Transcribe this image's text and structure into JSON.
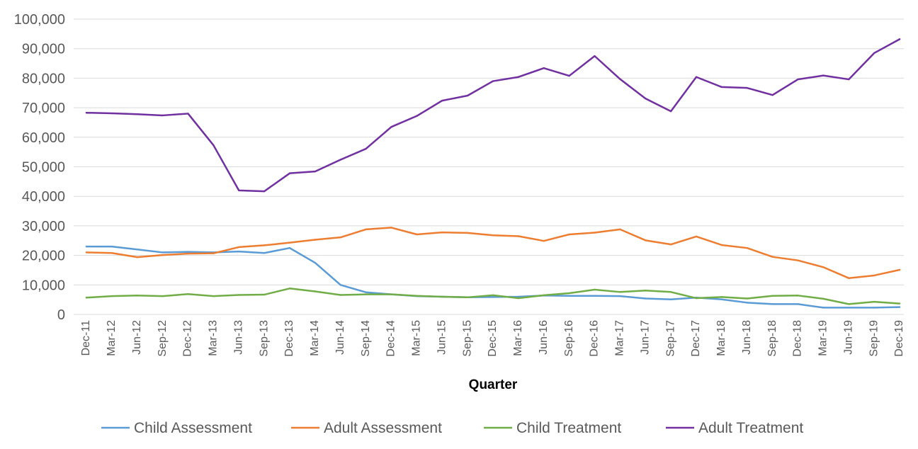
{
  "chart_data": {
    "type": "line",
    "title": "",
    "xlabel": "Quarter",
    "ylabel": "",
    "ylim": [
      0,
      100000
    ],
    "yticks": [
      0,
      10000,
      20000,
      30000,
      40000,
      50000,
      60000,
      70000,
      80000,
      90000,
      100000
    ],
    "ytick_labels": [
      "0",
      "10,000",
      "20,000",
      "30,000",
      "40,000",
      "50,000",
      "60,000",
      "70,000",
      "80,000",
      "90,000",
      "100,000"
    ],
    "grid": true,
    "legend_position": "bottom",
    "categories": [
      "Dec-11",
      "Mar-12",
      "Jun-12",
      "Sep-12",
      "Dec-12",
      "Mar-13",
      "Jun-13",
      "Sep-13",
      "Dec-13",
      "Mar-14",
      "Jun-14",
      "Sep-14",
      "Dec-14",
      "Mar-15",
      "Jun-15",
      "Sep-15",
      "Dec-15",
      "Mar-16",
      "Jun-16",
      "Sep-16",
      "Dec-16",
      "Mar-17",
      "Jun-17",
      "Sep-17",
      "Dec-17",
      "Mar-18",
      "Jun-18",
      "Sep-18",
      "Dec-18",
      "Mar-19",
      "Jun-19",
      "Sep-19",
      "Dec-19"
    ],
    "series": [
      {
        "name": "Child Assessment",
        "color": "#5B9BD5",
        "values": [
          23000,
          23000,
          22000,
          21000,
          21200,
          21000,
          21300,
          20800,
          22500,
          17500,
          10000,
          7500,
          6800,
          6200,
          6000,
          5800,
          5900,
          6000,
          6400,
          6300,
          6300,
          6200,
          5400,
          5100,
          5700,
          5100,
          4000,
          3500,
          3500,
          2300,
          2300,
          2300,
          2500
        ]
      },
      {
        "name": "Adult Assessment",
        "color": "#ED7D31",
        "values": [
          21000,
          20800,
          19400,
          20100,
          20600,
          20700,
          22800,
          23400,
          24300,
          25300,
          26100,
          28800,
          29400,
          27100,
          27800,
          27600,
          26800,
          26500,
          24900,
          27100,
          27700,
          28800,
          25100,
          23700,
          26400,
          23500,
          22500,
          19500,
          18300,
          16000,
          12300,
          13200,
          15100
        ]
      },
      {
        "name": "Child Treatment",
        "color": "#70AD47",
        "values": [
          5700,
          6200,
          6400,
          6200,
          6900,
          6200,
          6600,
          6700,
          8800,
          7800,
          6600,
          6800,
          6800,
          6300,
          6000,
          5800,
          6500,
          5500,
          6500,
          7200,
          8400,
          7600,
          8100,
          7600,
          5500,
          5900,
          5400,
          6300,
          6400,
          5300,
          3500,
          4300,
          3700
        ]
      },
      {
        "name": "Adult Treatment",
        "color": "#7030A0",
        "values": [
          68300,
          68100,
          67800,
          67400,
          68000,
          57300,
          42000,
          41700,
          47800,
          48400,
          52400,
          56100,
          63500,
          67200,
          72400,
          74100,
          79000,
          80400,
          83400,
          80800,
          87500,
          79700,
          73100,
          68800,
          80400,
          77000,
          76700,
          74300,
          79600,
          80900,
          79600,
          88500,
          93200
        ]
      }
    ]
  }
}
